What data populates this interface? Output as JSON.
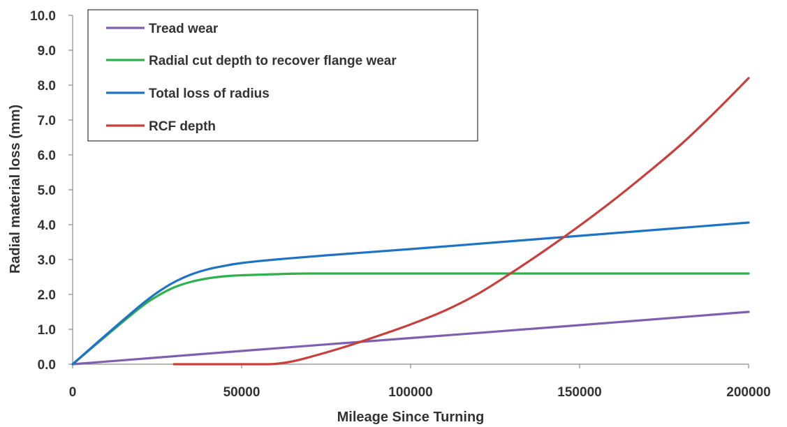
{
  "chart_data": {
    "type": "line",
    "title": "",
    "xlabel": "Mileage Since Turning",
    "ylabel": "Radial material loss (mm)",
    "xlim": [
      0,
      200000
    ],
    "ylim": [
      0,
      10
    ],
    "x_ticks": [
      "0",
      "50000",
      "100000",
      "150000",
      "200000"
    ],
    "y_ticks": [
      "0.0",
      "1.0",
      "2.0",
      "3.0",
      "4.0",
      "5.0",
      "6.0",
      "7.0",
      "8.0",
      "9.0",
      "10.0"
    ],
    "grid": false,
    "legend_position": "top-left",
    "series": [
      {
        "name": "Tread wear",
        "color": "#7f5fb0",
        "x": [
          0,
          50000,
          100000,
          150000,
          200000
        ],
        "y": [
          0,
          0.38,
          0.75,
          1.12,
          1.5
        ]
      },
      {
        "name": "Radial cut depth to recover flange wear",
        "color": "#2bb24c",
        "x": [
          0,
          10000,
          20000,
          25000,
          30000,
          35000,
          40000,
          45000,
          50000,
          60000,
          70000,
          100000,
          150000,
          200000
        ],
        "y": [
          0,
          0.82,
          1.62,
          1.95,
          2.2,
          2.36,
          2.46,
          2.52,
          2.55,
          2.58,
          2.6,
          2.6,
          2.6,
          2.6
        ]
      },
      {
        "name": "Total loss of radius",
        "color": "#1f73c4",
        "x": [
          0,
          10000,
          20000,
          25000,
          30000,
          35000,
          40000,
          45000,
          50000,
          60000,
          75000,
          100000,
          125000,
          150000,
          175000,
          200000
        ],
        "y": [
          0,
          0.85,
          1.68,
          2.05,
          2.35,
          2.57,
          2.72,
          2.82,
          2.9,
          3.0,
          3.12,
          3.3,
          3.49,
          3.68,
          3.87,
          4.06
        ]
      },
      {
        "name": "RCF depth",
        "color": "#c8403c",
        "x": [
          30000,
          45000,
          55000,
          60000,
          65000,
          70000,
          80000,
          90000,
          100000,
          110000,
          120000,
          130000,
          140000,
          150000,
          160000,
          170000,
          180000,
          190000,
          200000
        ],
        "y": [
          0,
          0,
          0,
          0.01,
          0.08,
          0.2,
          0.48,
          0.8,
          1.14,
          1.53,
          2.02,
          2.63,
          3.28,
          3.97,
          4.7,
          5.48,
          6.3,
          7.22,
          8.2
        ]
      }
    ]
  }
}
